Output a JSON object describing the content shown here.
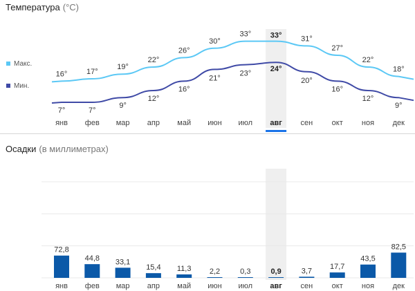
{
  "temperature": {
    "title": "Температура",
    "unit": "(°C)",
    "legend": {
      "max": "Макс.",
      "min": "Мин."
    }
  },
  "precipitation": {
    "title": "Осадки",
    "unit": "(в миллиметрах)"
  },
  "selected_month": "авг",
  "colors": {
    "max_line": "#5bc8f5",
    "min_line": "#3f4aa6",
    "bar": "#0b59a8",
    "highlight": "#efefef",
    "accent": "#1a73e8"
  },
  "chart_data": [
    {
      "type": "line",
      "title": "Температура (°C)",
      "categories": [
        "янв",
        "фев",
        "мар",
        "апр",
        "май",
        "июн",
        "июл",
        "авг",
        "сен",
        "окт",
        "ноя",
        "дек"
      ],
      "series": [
        {
          "name": "Макс.",
          "values": [
            16,
            17,
            19,
            22,
            26,
            30,
            33,
            33,
            31,
            27,
            22,
            18
          ]
        },
        {
          "name": "Мин.",
          "values": [
            7,
            7,
            9,
            12,
            16,
            21,
            23,
            24,
            20,
            16,
            12,
            9
          ]
        }
      ],
      "value_labels": {
        "max": [
          "16°",
          "17°",
          "19°",
          "22°",
          "26°",
          "30°",
          "33°",
          "33°",
          "31°",
          "27°",
          "22°",
          "18°"
        ],
        "min": [
          "7°",
          "7°",
          "9°",
          "12°",
          "16°",
          "21°",
          "23°",
          "24°",
          "20°",
          "16°",
          "12°",
          "9°"
        ]
      },
      "grid": false
    },
    {
      "type": "bar",
      "title": "Осадки (в миллиметрах)",
      "categories": [
        "янв",
        "фев",
        "мар",
        "апр",
        "май",
        "июн",
        "июл",
        "авг",
        "сен",
        "окт",
        "ноя",
        "дек"
      ],
      "values": [
        72.8,
        44.8,
        33.1,
        15.4,
        11.3,
        2.2,
        0.3,
        0.9,
        3.7,
        17.7,
        43.5,
        82.5
      ],
      "value_labels": [
        "72,8",
        "44,8",
        "33,1",
        "15,4",
        "11,3",
        "2,2",
        "0,3",
        "0,9",
        "3,7",
        "17,7",
        "43,5",
        "82,5"
      ],
      "ylim": [
        0,
        180
      ],
      "grid": true
    }
  ]
}
